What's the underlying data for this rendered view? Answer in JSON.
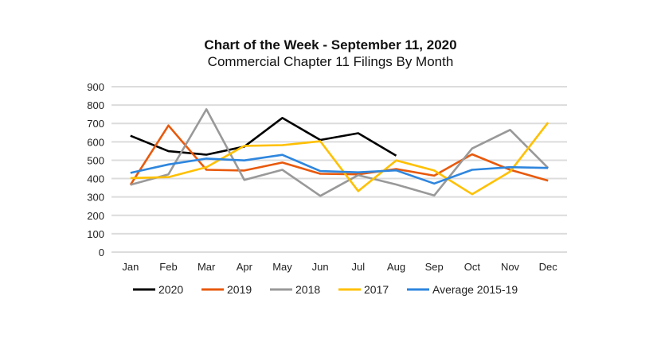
{
  "chart_data": {
    "type": "line",
    "title": "Chart of the Week - September 11, 2020",
    "subtitle": "Commercial Chapter 11 Filings By Month",
    "xlabel": "",
    "ylabel": "",
    "ylim": [
      0,
      900
    ],
    "yticks": [
      0,
      100,
      200,
      300,
      400,
      500,
      600,
      700,
      800,
      900
    ],
    "grid": true,
    "legend_position": "bottom",
    "categories": [
      "Jan",
      "Feb",
      "Mar",
      "Apr",
      "May",
      "Jun",
      "Jul",
      "Aug",
      "Sep",
      "Oct",
      "Nov",
      "Dec"
    ],
    "series": [
      {
        "name": "2020",
        "color": "#000000",
        "values": [
          633,
          549,
          530,
          574,
          730,
          610,
          647,
          525,
          null,
          null,
          null,
          null
        ]
      },
      {
        "name": "2019",
        "color": "#e8590c",
        "values": [
          366,
          689,
          448,
          444,
          487,
          426,
          423,
          452,
          416,
          532,
          448,
          389
        ]
      },
      {
        "name": "2018",
        "color": "#999999",
        "values": [
          366,
          423,
          777,
          393,
          448,
          306,
          419,
          368,
          308,
          564,
          665,
          458
        ]
      },
      {
        "name": "2017",
        "color": "#ffc000",
        "values": [
          403,
          408,
          462,
          578,
          582,
          603,
          332,
          499,
          444,
          315,
          438,
          705
        ]
      },
      {
        "name": "Average 2015-19",
        "color": "#2e86de",
        "values": [
          431,
          477,
          509,
          499,
          529,
          441,
          434,
          445,
          373,
          448,
          462,
          458
        ]
      }
    ]
  }
}
